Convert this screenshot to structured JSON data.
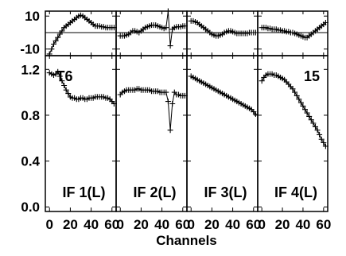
{
  "chart_data": {
    "type": "line",
    "layout": "2 rows x 4 columns of panels sharing axes",
    "xlabel": "Channels",
    "xlim": [
      -4,
      64
    ],
    "x_tick_labels": [
      "0",
      "20",
      "40",
      "60"
    ],
    "top_row": {
      "ylim": [
        -14,
        13
      ],
      "y_tick_labels": [
        "10",
        "-10"
      ],
      "zero_line": true
    },
    "bottom_row": {
      "ylim": [
        -0.04,
        1.32
      ],
      "y_tick_labels": [
        "1.2",
        "0.8",
        "0.4",
        "0.0"
      ]
    },
    "panels": [
      {
        "if_label": "IF 1(L)",
        "corner_label": "T6",
        "phase": {
          "x": [
            0,
            2,
            4,
            6,
            8,
            10,
            12,
            14,
            16,
            18,
            20,
            22,
            24,
            26,
            28,
            30,
            32,
            34,
            36,
            38,
            40,
            42,
            44,
            46,
            48,
            50,
            52,
            54,
            56,
            58,
            60,
            62
          ],
          "y": [
            -13,
            -10,
            -7,
            -5,
            -3,
            -1,
            1,
            3,
            4,
            5,
            6,
            7,
            8,
            9,
            10,
            10.5,
            10,
            9,
            8,
            7,
            6,
            5,
            4,
            4,
            4,
            3.5,
            3.5,
            3,
            3,
            3,
            3,
            3
          ]
        },
        "amplitude": {
          "x": [
            0,
            2,
            4,
            6,
            8,
            10,
            12,
            14,
            16,
            18,
            20,
            22,
            24,
            26,
            28,
            30,
            32,
            34,
            36,
            38,
            40,
            42,
            44,
            46,
            48,
            50,
            52,
            54,
            56,
            58,
            60,
            62
          ],
          "y": [
            1.17,
            1.16,
            1.15,
            1.16,
            1.18,
            1.14,
            1.1,
            1.06,
            1.02,
            0.99,
            0.96,
            0.95,
            0.95,
            0.94,
            0.94,
            0.95,
            0.95,
            0.94,
            0.94,
            0.95,
            0.95,
            0.95,
            0.96,
            0.96,
            0.96,
            0.96,
            0.96,
            0.95,
            0.95,
            0.94,
            0.92,
            0.9
          ]
        }
      },
      {
        "if_label": "IF 2(L)",
        "corner_label": "",
        "phase": {
          "x": [
            0,
            2,
            4,
            6,
            8,
            10,
            12,
            14,
            16,
            18,
            20,
            22,
            24,
            26,
            28,
            30,
            32,
            34,
            36,
            38,
            40,
            42,
            44,
            46,
            48,
            50,
            52,
            54,
            56,
            58,
            60,
            62
          ],
          "y": [
            -2,
            -2,
            -2,
            -1.5,
            -1,
            0,
            1,
            1,
            0.5,
            0,
            1,
            2,
            3,
            3.5,
            4,
            4.5,
            4.5,
            4.5,
            4,
            3.5,
            3,
            2.5,
            3,
            13,
            -8,
            2,
            3,
            3.5,
            3.5,
            3.5,
            4,
            4
          ]
        },
        "amplitude": {
          "x": [
            0,
            2,
            4,
            6,
            8,
            10,
            12,
            14,
            16,
            18,
            20,
            22,
            24,
            26,
            28,
            30,
            32,
            34,
            36,
            38,
            40,
            42,
            44,
            46,
            48,
            50,
            52,
            54,
            56,
            58,
            60,
            62
          ],
          "y": [
            0.98,
            1.0,
            1.01,
            1.02,
            1.02,
            1.02,
            1.02,
            1.02,
            1.03,
            1.03,
            1.02,
            1.02,
            1.02,
            1.02,
            1.02,
            1.01,
            1.01,
            1.01,
            1.01,
            1.0,
            1.0,
            1.0,
            1.0,
            0.92,
            0.67,
            0.9,
            1.0,
            0.98,
            0.98,
            0.97,
            0.97,
            0.97
          ]
        }
      },
      {
        "if_label": "IF 3(L)",
        "corner_label": "",
        "phase": {
          "x": [
            0,
            2,
            4,
            6,
            8,
            10,
            12,
            14,
            16,
            18,
            20,
            22,
            24,
            26,
            28,
            30,
            32,
            34,
            36,
            38,
            40,
            42,
            44,
            46,
            48,
            50,
            52,
            54,
            56,
            58,
            60,
            62
          ],
          "y": [
            7,
            7,
            6.5,
            6,
            5,
            4,
            3,
            2,
            1,
            0,
            -1,
            -1.5,
            -2,
            -2,
            -1.5,
            -1,
            0,
            0.5,
            1,
            1,
            0.5,
            0,
            -0.5,
            -0.5,
            -0.5,
            -0.5,
            -0.5,
            -0.5,
            0,
            0,
            0,
            0
          ]
        },
        "amplitude": {
          "x": [
            0,
            2,
            4,
            6,
            8,
            10,
            12,
            14,
            16,
            18,
            20,
            22,
            24,
            26,
            28,
            30,
            32,
            34,
            36,
            38,
            40,
            42,
            44,
            46,
            48,
            50,
            52,
            54,
            56,
            58,
            60,
            62
          ],
          "y": [
            1.14,
            1.13,
            1.12,
            1.11,
            1.1,
            1.09,
            1.08,
            1.07,
            1.06,
            1.05,
            1.04,
            1.03,
            1.02,
            1.01,
            1.0,
            0.99,
            0.98,
            0.97,
            0.96,
            0.95,
            0.94,
            0.93,
            0.92,
            0.91,
            0.9,
            0.89,
            0.88,
            0.87,
            0.86,
            0.85,
            0.83,
            0.81
          ]
        }
      },
      {
        "if_label": "IF 4(L)",
        "corner_label": "15",
        "phase": {
          "x": [
            0,
            2,
            4,
            6,
            8,
            10,
            12,
            14,
            16,
            18,
            20,
            22,
            24,
            26,
            28,
            30,
            32,
            34,
            36,
            38,
            40,
            42,
            44,
            46,
            48,
            50,
            52,
            54,
            56,
            58,
            60,
            62
          ],
          "y": [
            3,
            3,
            3,
            2.5,
            2.5,
            2,
            2,
            2,
            1.5,
            1.5,
            1,
            1,
            0.5,
            0.5,
            0,
            0,
            -0.5,
            -1,
            -1.5,
            -2,
            -2.5,
            -3,
            -3,
            -2,
            -1,
            0,
            1,
            2,
            3,
            4,
            5,
            6
          ]
        },
        "amplitude": {
          "x": [
            0,
            2,
            4,
            6,
            8,
            10,
            12,
            14,
            16,
            18,
            20,
            22,
            24,
            26,
            28,
            30,
            32,
            34,
            36,
            38,
            40,
            42,
            44,
            46,
            48,
            50,
            52,
            54,
            56,
            58,
            60,
            62
          ],
          "y": [
            1.1,
            1.13,
            1.15,
            1.16,
            1.16,
            1.16,
            1.15,
            1.15,
            1.14,
            1.13,
            1.12,
            1.11,
            1.09,
            1.07,
            1.05,
            1.03,
            1.0,
            0.97,
            0.94,
            0.91,
            0.88,
            0.85,
            0.82,
            0.79,
            0.76,
            0.73,
            0.7,
            0.67,
            0.63,
            0.59,
            0.56,
            0.53
          ]
        }
      }
    ]
  }
}
